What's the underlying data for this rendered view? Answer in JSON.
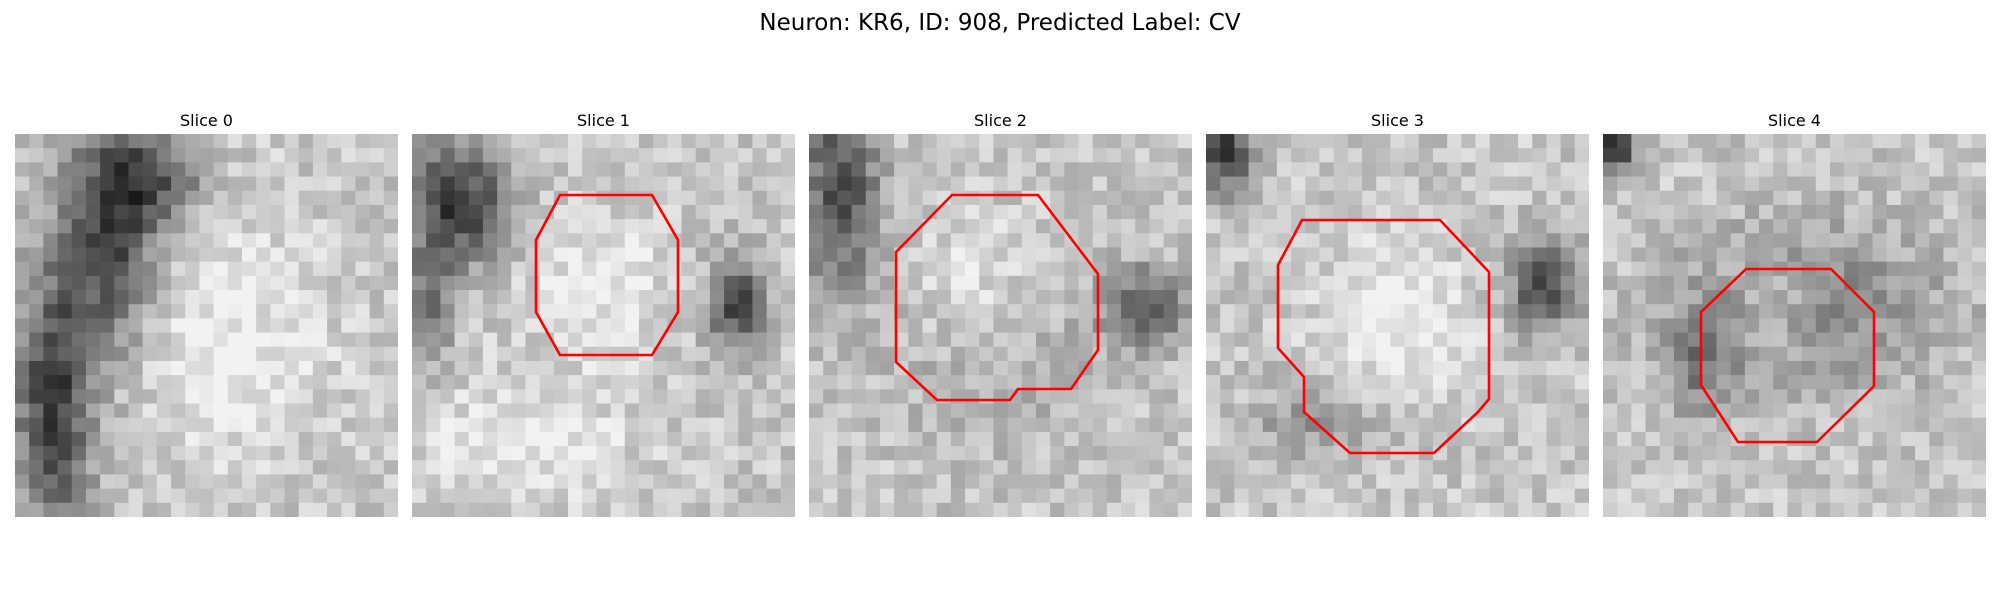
{
  "figure": {
    "title": "Neuron: KR6, ID: 908, Predicted Label: CV"
  },
  "style": {
    "contour_color": "#ff0000"
  },
  "slices": [
    {
      "title": "Slice 0",
      "has_contour": false
    },
    {
      "title": "Slice 1",
      "has_contour": true
    },
    {
      "title": "Slice 2",
      "has_contour": true
    },
    {
      "title": "Slice 3",
      "has_contour": true
    },
    {
      "title": "Slice 4",
      "has_contour": true
    }
  ]
}
